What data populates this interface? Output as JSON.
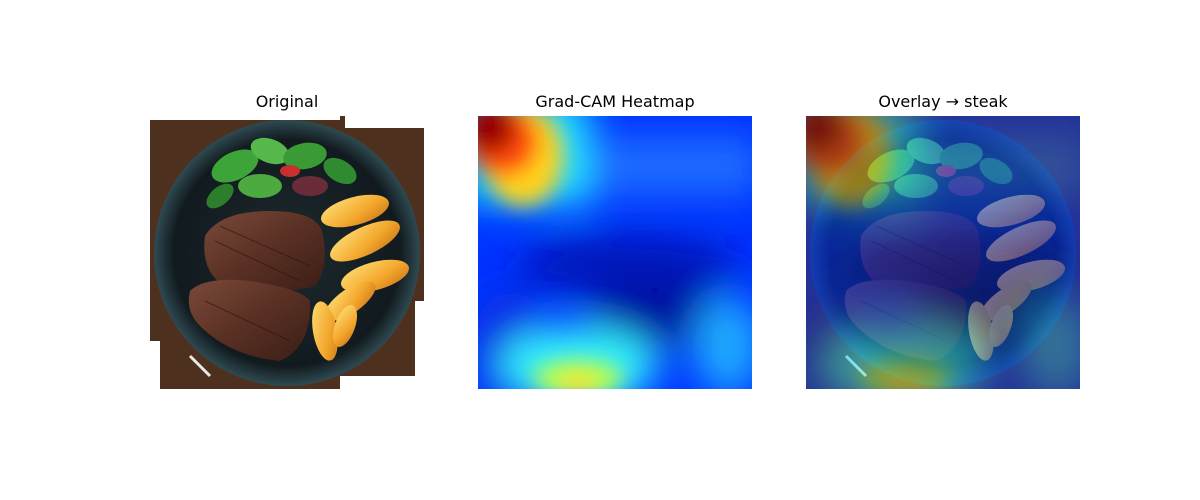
{
  "panels": [
    {
      "title": "Original",
      "image": "steak-dinner-plate-photo"
    },
    {
      "title": "Grad-CAM Heatmap",
      "image": "gradcam-heatmap",
      "colormap": "jet"
    },
    {
      "title": "Overlay → steak",
      "image": "heatmap-overlay-on-photo"
    }
  ]
}
